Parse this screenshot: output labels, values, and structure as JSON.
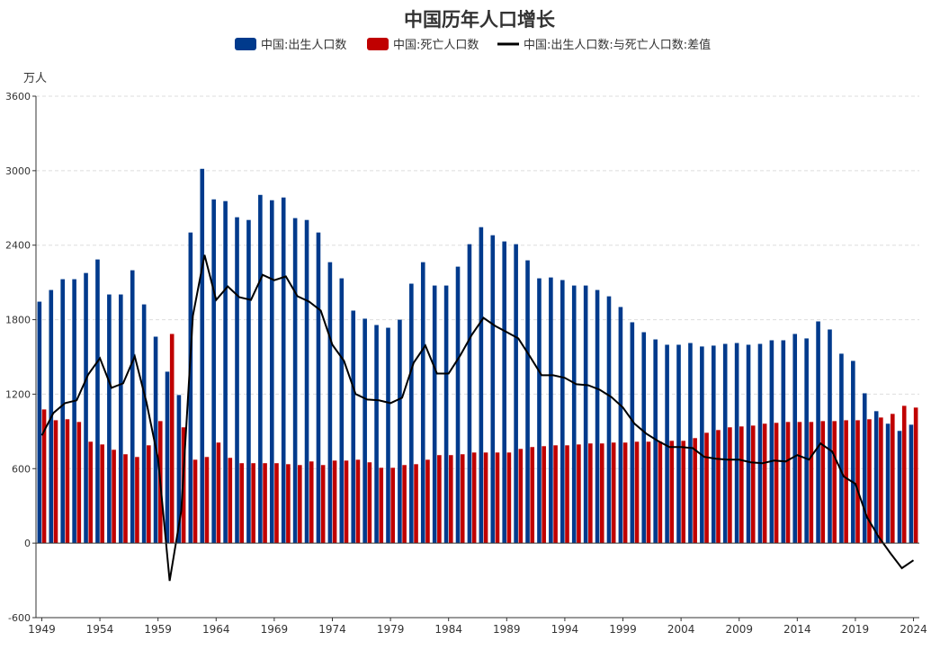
{
  "chart_data": {
    "type": "bar",
    "title": "中国历年人口增长",
    "ylabel": "万人",
    "xlabel": "",
    "ylim": [
      -600,
      3600
    ],
    "yticks": [
      -600,
      0,
      600,
      1200,
      1800,
      2400,
      3000,
      3600
    ],
    "grid": true,
    "legend_position": "top",
    "colors": {
      "births": "#003a8c",
      "deaths": "#c00000",
      "difference": "#000000"
    },
    "categories": [
      1949,
      1950,
      1951,
      1952,
      1953,
      1954,
      1955,
      1956,
      1957,
      1958,
      1959,
      1960,
      1961,
      1962,
      1963,
      1964,
      1965,
      1966,
      1967,
      1968,
      1969,
      1970,
      1971,
      1972,
      1973,
      1974,
      1975,
      1976,
      1977,
      1978,
      1979,
      1980,
      1981,
      1982,
      1983,
      1984,
      1985,
      1986,
      1987,
      1988,
      1989,
      1990,
      1991,
      1992,
      1993,
      1994,
      1995,
      1996,
      1997,
      1998,
      1999,
      2000,
      2001,
      2002,
      2003,
      2004,
      2005,
      2006,
      2007,
      2008,
      2009,
      2010,
      2011,
      2012,
      2013,
      2014,
      2015,
      2016,
      2017,
      2018,
      2019,
      2020,
      2021,
      2022,
      2023,
      2024
    ],
    "xtick_labels": [
      "1949",
      "1954",
      "1959",
      "1964",
      "1969",
      "1974",
      "1979",
      "1984",
      "1989",
      "1994",
      "1999",
      "2004",
      "2009",
      "2014",
      "2019",
      "2024"
    ],
    "series": [
      {
        "name": "中国:出生人口数",
        "type": "bar",
        "values": [
          1945,
          2039,
          2126,
          2126,
          2176,
          2285,
          2003,
          2003,
          2198,
          1923,
          1663,
          1381,
          1193,
          2502,
          3015,
          2769,
          2755,
          2625,
          2603,
          2805,
          2762,
          2784,
          2618,
          2603,
          2502,
          2263,
          2133,
          1873,
          1808,
          1757,
          1735,
          1800,
          2090,
          2263,
          2075,
          2075,
          2227,
          2408,
          2545,
          2480,
          2430,
          2408,
          2278,
          2133,
          2140,
          2119,
          2075,
          2075,
          2039,
          1988,
          1902,
          1779,
          1699,
          1641,
          1598,
          1598,
          1612,
          1584,
          1591,
          1605,
          1612,
          1598,
          1605,
          1634,
          1634,
          1685,
          1649,
          1786,
          1721,
          1526,
          1468,
          1207,
          1063,
          962,
          904,
          954
        ]
      },
      {
        "name": "中国:死亡人口数",
        "type": "bar",
        "values": [
          1077,
          990,
          998,
          976,
          817,
          795,
          752,
          716,
          694,
          788,
          983,
          1685,
          933,
          672,
          694,
          810,
          687,
          644,
          644,
          644,
          644,
          636,
          629,
          658,
          629,
          665,
          665,
          672,
          651,
          607,
          607,
          629,
          636,
          672,
          709,
          709,
          716,
          730,
          730,
          730,
          730,
          759,
          774,
          781,
          788,
          788,
          795,
          803,
          803,
          810,
          810,
          817,
          817,
          817,
          824,
          824,
          846,
          889,
          911,
          933,
          940,
          947,
          962,
          969,
          976,
          976,
          976,
          983,
          983,
          990,
          990,
          998,
          1012,
          1041,
          1106,
          1092
        ]
      },
      {
        "name": "中国:出生人口数:与死亡人口数:差值",
        "type": "line",
        "values": [
          868,
          1049,
          1128,
          1150,
          1359,
          1490,
          1251,
          1287,
          1504,
          1135,
          680,
          -304,
          260,
          1830,
          2321,
          1959,
          2068,
          1981,
          1959,
          2161,
          2118,
          2148,
          1989,
          1945,
          1873,
          1598,
          1468,
          1201,
          1157,
          1150,
          1128,
          1171,
          1454,
          1591,
          1366,
          1366,
          1511,
          1678,
          1815,
          1750,
          1700,
          1649,
          1504,
          1352,
          1352,
          1331,
          1280,
          1272,
          1236,
          1178,
          1092,
          962,
          882,
          824,
          774,
          774,
          766,
          695,
          680,
          672,
          672,
          651,
          643,
          665,
          658,
          709,
          673,
          803,
          738,
          536,
          478,
          209,
          51,
          -79,
          -202,
          -138
        ]
      }
    ]
  }
}
